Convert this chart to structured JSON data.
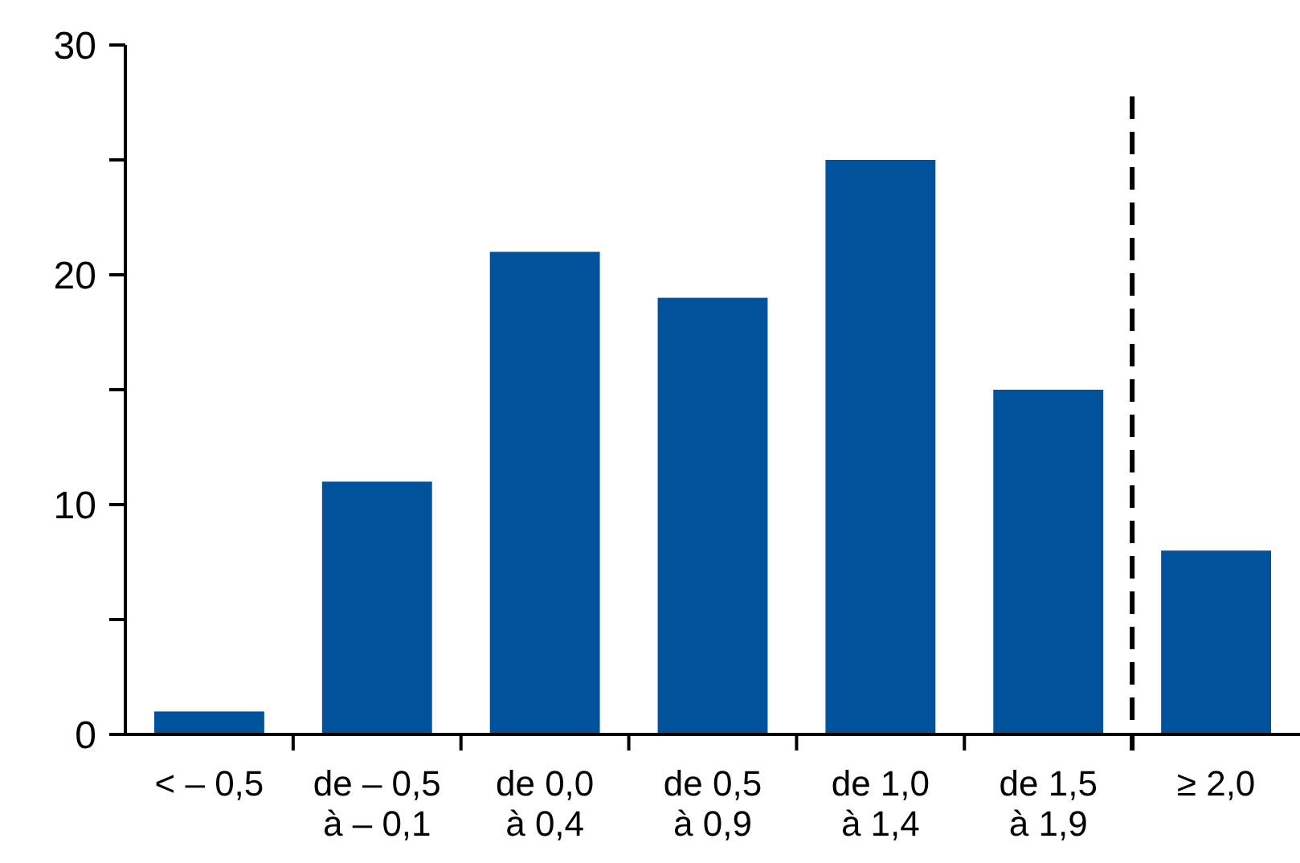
{
  "chart_data": {
    "type": "bar",
    "categories": [
      "< – 0,5",
      "de – 0,5\nà – 0,1",
      "de 0,0\nà 0,4",
      "de 0,5\nà 0,9",
      "de 1,0\nà 1,4",
      "de 1,5\nà 1,9",
      "≥ 2,0"
    ],
    "values": [
      1,
      11,
      21,
      19,
      25,
      15,
      8
    ],
    "color": "#00529b",
    "ylim": [
      0,
      30
    ],
    "yticks": [
      0,
      {
        "value": 5,
        "label": null
      },
      10,
      {
        "value": 15,
        "label": null
      },
      20,
      {
        "value": 25,
        "label": null
      },
      30
    ],
    "grid": false
  }
}
